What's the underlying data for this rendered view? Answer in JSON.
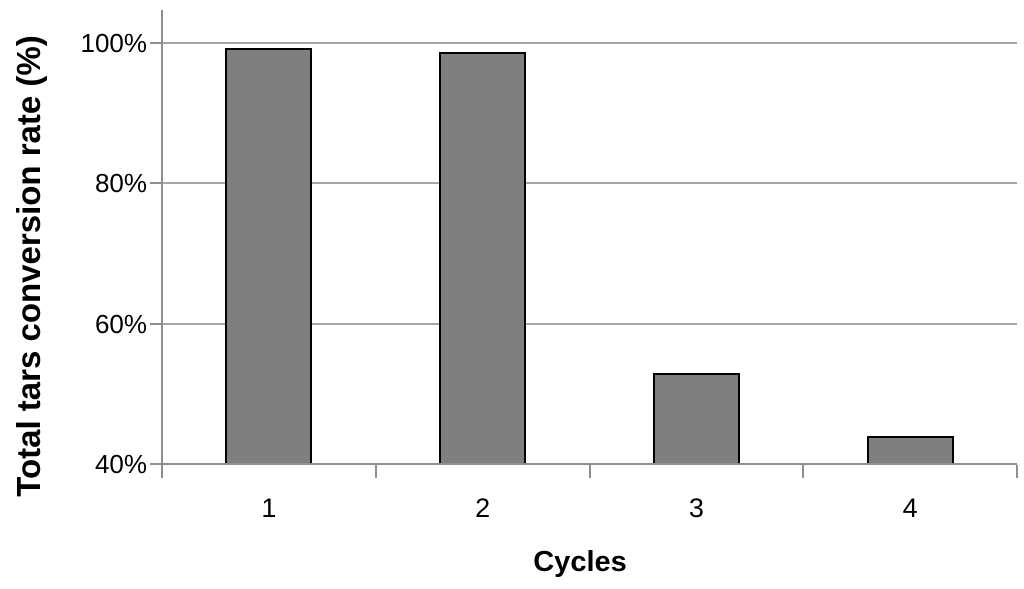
{
  "chart_data": {
    "type": "bar",
    "categories": [
      "1",
      "2",
      "3",
      "4"
    ],
    "values": [
      99.3,
      98.7,
      53,
      44
    ],
    "title": "",
    "xlabel": "Cycles",
    "ylabel": "Total tars conversion rate (%)",
    "ylim": [
      40,
      100
    ],
    "ytick_step": 20,
    "ytick_labels": [
      "40%",
      "60%",
      "80%",
      "100%"
    ],
    "grid": true,
    "legend": false,
    "bar_color": "#7f7f7f",
    "bar_border_color": "#000000",
    "gridline_color": "#a6a6a6",
    "axis_color": "#8e8e8e",
    "text_color": "#000000"
  }
}
